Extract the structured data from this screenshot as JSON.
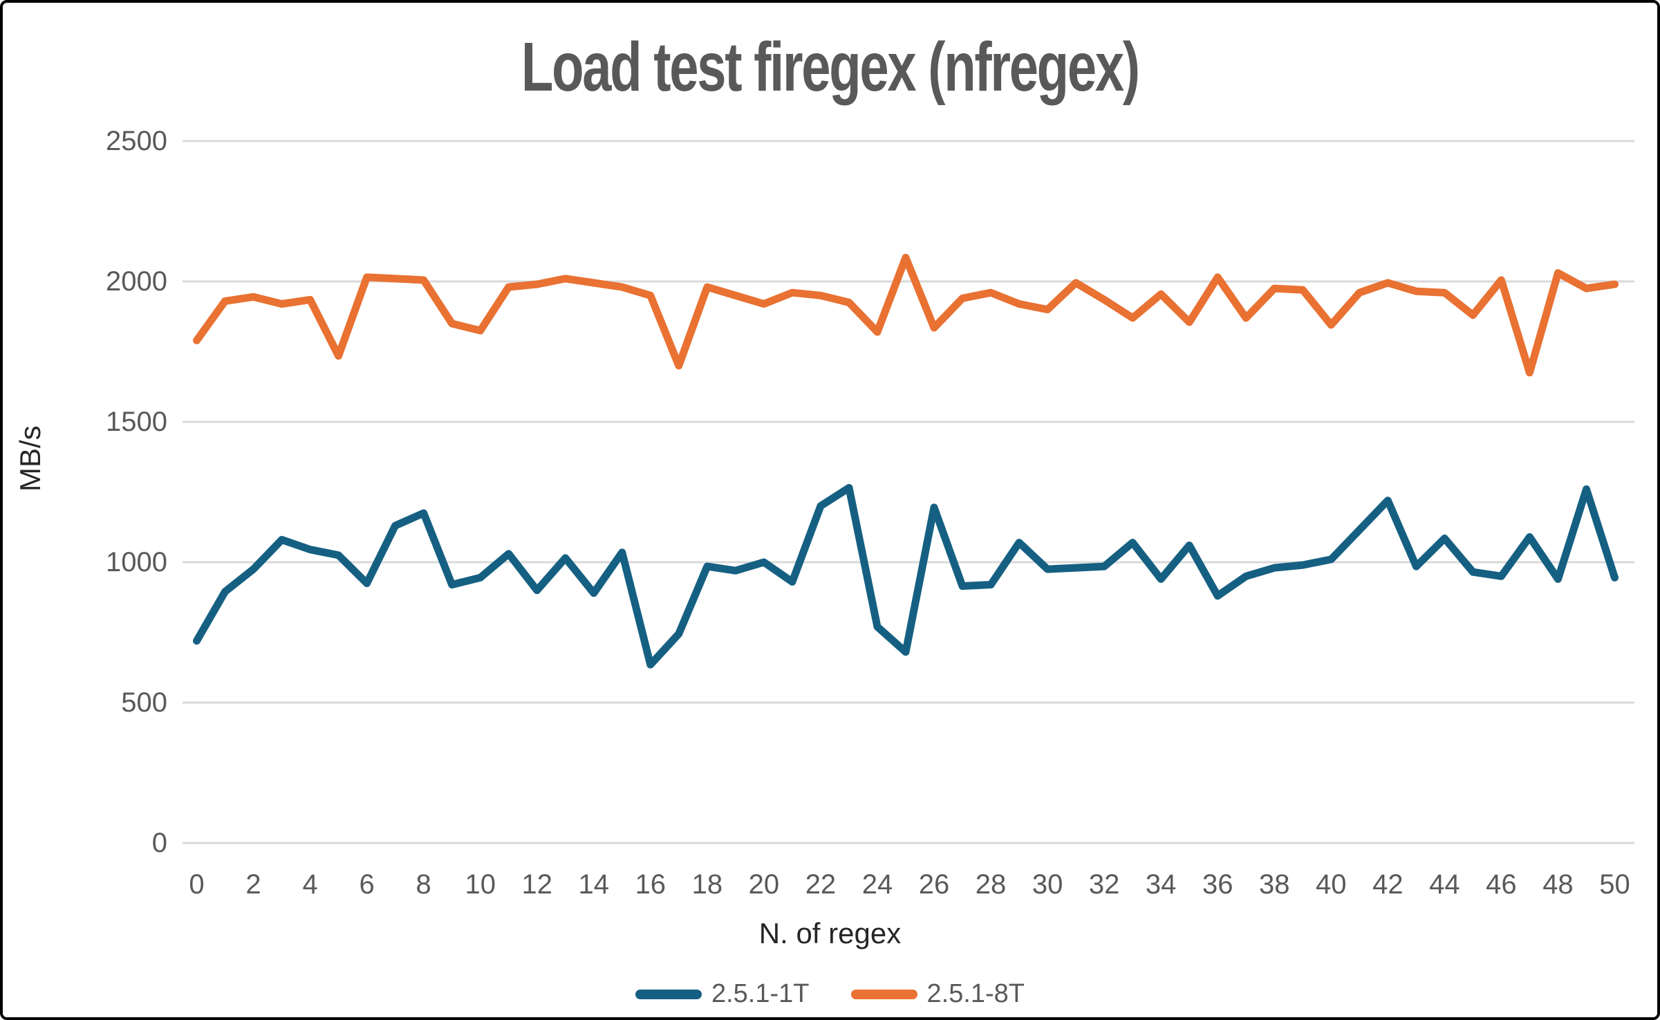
{
  "chart": {
    "background": "#ffffff",
    "frame_color": "#000000",
    "title_color": "#595959",
    "tick_color": "#595959",
    "axis_title_color": "#262626",
    "gridline_color": "#d9d9d9"
  },
  "chart_data": {
    "type": "line",
    "title": "Load test firegex (nfregex)",
    "xlabel": "N. of regex",
    "ylabel": "MB/s",
    "x": [
      0,
      1,
      2,
      3,
      4,
      5,
      6,
      7,
      8,
      9,
      10,
      11,
      12,
      13,
      14,
      15,
      16,
      17,
      18,
      19,
      20,
      21,
      22,
      23,
      24,
      25,
      26,
      27,
      28,
      29,
      30,
      31,
      32,
      33,
      34,
      35,
      36,
      37,
      38,
      39,
      40,
      41,
      42,
      43,
      44,
      45,
      46,
      47,
      48,
      49,
      50
    ],
    "x_ticks": [
      0,
      2,
      4,
      6,
      8,
      10,
      12,
      14,
      16,
      18,
      20,
      22,
      24,
      26,
      28,
      30,
      32,
      34,
      36,
      38,
      40,
      42,
      44,
      46,
      48,
      50
    ],
    "y_ticks": [
      0,
      500,
      1000,
      1500,
      2000,
      2500
    ],
    "ylim": [
      0,
      2500
    ],
    "grid": true,
    "legend_position": "bottom",
    "series": [
      {
        "name": "2.5.1-1T",
        "color": "#156082",
        "values": [
          720,
          895,
          975,
          1080,
          1045,
          1025,
          925,
          1130,
          1175,
          920,
          945,
          1030,
          900,
          1015,
          890,
          1035,
          635,
          745,
          985,
          970,
          1000,
          930,
          1200,
          1265,
          770,
          680,
          1195,
          915,
          920,
          1070,
          975,
          980,
          985,
          1070,
          940,
          1060,
          880,
          950,
          980,
          990,
          1010,
          1115,
          1220,
          985,
          1085,
          965,
          950,
          1090,
          940,
          1260,
          945
        ]
      },
      {
        "name": "2.5.1-8T",
        "color": "#E97132",
        "values": [
          1790,
          1930,
          1945,
          1920,
          1935,
          1735,
          2015,
          2010,
          2005,
          1850,
          1825,
          1980,
          1990,
          2010,
          1995,
          1980,
          1950,
          1700,
          1980,
          1950,
          1920,
          1960,
          1950,
          1925,
          1820,
          2085,
          1835,
          1940,
          1960,
          1920,
          1900,
          1995,
          1935,
          1870,
          1955,
          1855,
          2015,
          1870,
          1975,
          1970,
          1845,
          1960,
          1995,
          1965,
          1960,
          1880,
          2005,
          1675,
          2030,
          1975,
          1990
        ]
      }
    ]
  }
}
